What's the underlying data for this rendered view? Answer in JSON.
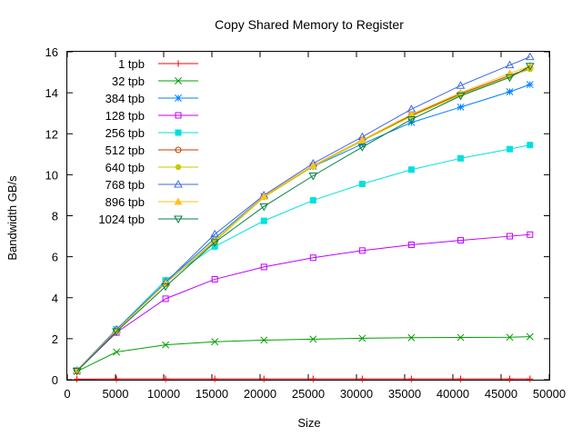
{
  "chart_data": {
    "type": "line",
    "title": "Copy Shared Memory to Register",
    "xlabel": "Size",
    "ylabel": "Bandwidth GB/s",
    "xlim": [
      0,
      50000
    ],
    "ylim": [
      0,
      16
    ],
    "xticks": [
      0,
      5000,
      10000,
      15000,
      20000,
      25000,
      30000,
      35000,
      40000,
      45000,
      50000
    ],
    "yticks": [
      0,
      2,
      4,
      6,
      8,
      10,
      12,
      14,
      16
    ],
    "grid": false,
    "legend_position": "top-left",
    "x": [
      1000,
      5100,
      10200,
      15300,
      20400,
      25500,
      30600,
      35700,
      40800,
      45900,
      48000
    ],
    "series": [
      {
        "name": "1 tpb",
        "color": "#ff0000",
        "marker": "plus",
        "values": [
          0.03,
          0.04,
          0.04,
          0.04,
          0.04,
          0.04,
          0.04,
          0.04,
          0.04,
          0.04,
          0.04
        ]
      },
      {
        "name": "32 tpb",
        "color": "#00a000",
        "marker": "x",
        "values": [
          0.4,
          1.35,
          1.7,
          1.85,
          1.93,
          1.98,
          2.02,
          2.05,
          2.06,
          2.07,
          2.1
        ]
      },
      {
        "name": "384 tpb",
        "color": "#0080ff",
        "marker": "star",
        "values": [
          0.45,
          2.45,
          4.75,
          6.9,
          8.95,
          10.4,
          11.5,
          12.55,
          13.3,
          14.05,
          14.4
        ]
      },
      {
        "name": "128 tpb",
        "color": "#c000ff",
        "marker": "square-open",
        "values": [
          0.42,
          2.3,
          3.95,
          4.9,
          5.5,
          5.95,
          6.3,
          6.58,
          6.8,
          7.0,
          7.08
        ]
      },
      {
        "name": "256 tpb",
        "color": "#00e0e0",
        "marker": "square-filled",
        "values": [
          0.45,
          2.45,
          4.85,
          6.5,
          7.75,
          8.75,
          9.55,
          10.25,
          10.8,
          11.25,
          11.45
        ]
      },
      {
        "name": "512 tpb",
        "color": "#c04000",
        "marker": "circle-open",
        "values": [
          0.45,
          2.4,
          4.7,
          6.75,
          8.95,
          10.45,
          11.7,
          12.9,
          13.95,
          14.85,
          15.2
        ]
      },
      {
        "name": "640 tpb",
        "color": "#c8c800",
        "marker": "circle-filled",
        "values": [
          0.45,
          2.4,
          4.7,
          6.75,
          8.9,
          10.4,
          11.65,
          12.85,
          13.9,
          14.8,
          15.15
        ]
      },
      {
        "name": "768 tpb",
        "color": "#4169e1",
        "marker": "triangle-open",
        "values": [
          0.45,
          2.45,
          4.75,
          7.1,
          9.0,
          10.55,
          11.85,
          13.2,
          14.35,
          15.35,
          15.75
        ]
      },
      {
        "name": "896 tpb",
        "color": "#ffc020",
        "marker": "triangle-filled",
        "values": [
          0.45,
          2.4,
          4.7,
          6.8,
          8.95,
          10.45,
          11.7,
          12.95,
          14.0,
          14.95,
          15.3
        ]
      },
      {
        "name": "1024 tpb",
        "color": "#008040",
        "marker": "triangle-down-open",
        "values": [
          0.42,
          2.35,
          4.55,
          6.7,
          8.45,
          9.95,
          11.35,
          12.7,
          13.85,
          14.75,
          15.3
        ]
      }
    ]
  }
}
